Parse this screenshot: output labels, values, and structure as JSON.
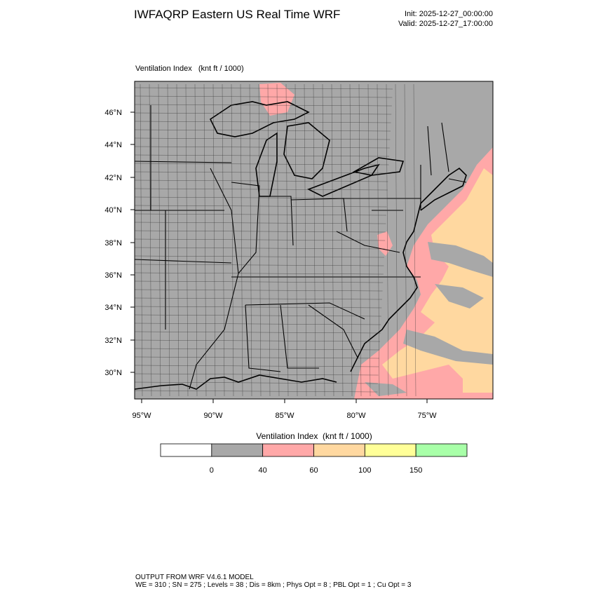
{
  "header": {
    "title": "IWFAQRP Eastern US Real Time WRF",
    "init": "Init: 2025-12-27_00:00:00",
    "valid": "Valid: 2025-12-27_17:00:00"
  },
  "map": {
    "title": "Ventilation Index   (knt ft / 1000)",
    "lat_labels": [
      "46°N",
      "44°N",
      "42°N",
      "40°N",
      "38°N",
      "36°N",
      "34°N",
      "32°N",
      "30°N"
    ],
    "lon_labels": [
      "95°W",
      "90°W",
      "85°W",
      "80°W",
      "75°W"
    ]
  },
  "colorbar": {
    "title": "Ventilation Index  (knt ft / 1000)",
    "colors": [
      "#ffffff",
      "#a8a8a8",
      "#ffa8a8",
      "#ffd8a0",
      "#ffff98",
      "#a8ffa8"
    ],
    "labels": [
      "0",
      "40",
      "60",
      "100",
      "150"
    ]
  },
  "footer": {
    "line1": "OUTPUT FROM WRF V4.6.1 MODEL",
    "line2": "WE = 310 ; SN = 275 ; Levels = 38 ; Dis = 8km ; Phys Opt = 8 ; PBL Opt = 1 ; Cu Opt = 3"
  }
}
